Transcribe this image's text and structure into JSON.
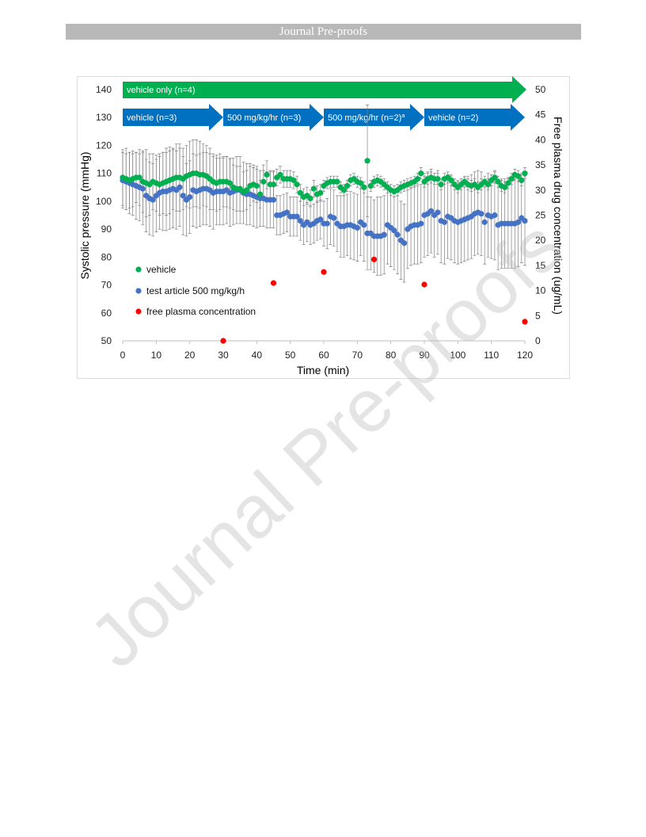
{
  "header": {
    "title": "Journal Pre-proofs"
  },
  "watermark": "Journal Pre-proofs",
  "chart_data": {
    "type": "scatter",
    "xlabel": "Time (min)",
    "ylabel": "Systolic pressure (mmHg)",
    "y2label": "Free plasma drug concentration (ug/mL)",
    "xlim": [
      0,
      120
    ],
    "ylim": [
      50,
      140
    ],
    "y2lim": [
      0,
      50
    ],
    "x_ticks": [
      0,
      10,
      20,
      30,
      40,
      50,
      60,
      70,
      80,
      90,
      100,
      110,
      120
    ],
    "y_ticks": [
      50,
      60,
      70,
      80,
      90,
      100,
      110,
      120,
      130,
      140
    ],
    "y2_ticks": [
      0,
      5,
      10,
      15,
      20,
      25,
      30,
      35,
      40,
      45,
      50
    ],
    "grid": false,
    "legend_placement": "lower-left",
    "x": [
      0,
      1,
      2,
      3,
      4,
      5,
      6,
      7,
      8,
      9,
      10,
      11,
      12,
      13,
      14,
      15,
      16,
      17,
      18,
      19,
      20,
      21,
      22,
      23,
      24,
      25,
      26,
      27,
      28,
      29,
      30,
      31,
      32,
      33,
      34,
      35,
      36,
      37,
      38,
      39,
      40,
      41,
      42,
      43,
      44,
      45,
      46,
      47,
      48,
      49,
      50,
      51,
      52,
      53,
      54,
      55,
      56,
      57,
      58,
      59,
      60,
      61,
      62,
      63,
      64,
      65,
      66,
      67,
      68,
      69,
      70,
      71,
      72,
      73,
      74,
      75,
      76,
      77,
      78,
      79,
      80,
      81,
      82,
      83,
      84,
      85,
      86,
      87,
      88,
      89,
      90,
      91,
      92,
      93,
      94,
      95,
      96,
      97,
      98,
      99,
      100,
      101,
      102,
      103,
      104,
      105,
      106,
      107,
      108,
      109,
      110,
      111,
      112,
      113,
      114,
      115,
      116,
      117,
      118,
      119,
      120
    ],
    "series": [
      {
        "name": "vehicle",
        "axis": "left",
        "color": "#00b050",
        "values": [
          108.5,
          108,
          107.5,
          108,
          108.5,
          108.5,
          107,
          106.5,
          106,
          107,
          106.5,
          106,
          106.5,
          107,
          107.5,
          108,
          108.5,
          108.5,
          108,
          109,
          109.5,
          110,
          110,
          109.5,
          109.5,
          109,
          108,
          107,
          106.5,
          107,
          107,
          107,
          106.5,
          105,
          104.5,
          104.5,
          103.5,
          104,
          105.5,
          106,
          105.5,
          102.5,
          107,
          109.5,
          106,
          106,
          108.5,
          109.5,
          108,
          108,
          108,
          107.5,
          106,
          103,
          101.5,
          102,
          101,
          104.5,
          102.5,
          103,
          105.5,
          106.5,
          107,
          107,
          107,
          105,
          104,
          105.5,
          107.5,
          108,
          107,
          106.5,
          105,
          114.5,
          105.5,
          107,
          107.5,
          107,
          106,
          105,
          104,
          103.5,
          104,
          105,
          105.5,
          106,
          106.5,
          107,
          108,
          110,
          107,
          108,
          108.5,
          108,
          108,
          106,
          108,
          108.5,
          107.5,
          106,
          105,
          106,
          107,
          106,
          105.5,
          106,
          105,
          106,
          107,
          106,
          107.5,
          108.5,
          107,
          105.5,
          105,
          106.5,
          108,
          109.5,
          109,
          107.5,
          110
        ],
        "error": [
          10,
          11,
          10,
          10,
          9,
          10,
          11,
          12,
          11,
          10,
          10,
          11,
          11,
          12,
          12,
          11,
          12,
          12,
          11,
          11,
          12,
          12,
          12,
          12,
          11,
          11,
          11,
          10,
          10,
          10,
          9,
          9,
          9,
          8,
          8,
          8,
          7,
          7,
          7,
          6,
          6,
          5,
          6,
          5,
          5,
          5,
          3,
          3,
          3,
          3,
          3,
          3,
          3,
          3,
          3,
          3,
          3,
          3,
          3,
          3,
          2,
          2,
          2,
          2,
          2,
          2,
          2,
          2,
          2,
          2,
          2,
          2,
          2,
          20,
          2,
          2,
          2,
          2,
          2,
          2,
          2,
          2,
          2,
          2,
          2,
          2,
          2,
          2,
          2,
          2,
          2,
          2,
          2,
          2,
          2,
          2,
          2,
          2,
          2,
          2,
          2,
          2,
          2,
          2,
          2,
          2,
          2,
          2,
          2,
          2,
          2,
          2,
          2,
          2,
          2,
          2,
          2,
          2,
          2,
          2,
          2
        ]
      },
      {
        "name": "test article 500 mg/kg/h",
        "axis": "left",
        "color": "#4472c4",
        "values": [
          107.5,
          107,
          106.5,
          106,
          105.5,
          105,
          104.5,
          102,
          101,
          100.5,
          102,
          103,
          103.5,
          103.5,
          104,
          104.5,
          104,
          105,
          102,
          100.5,
          101.5,
          104,
          103.5,
          104,
          104.5,
          104.5,
          104,
          103,
          103.5,
          103.5,
          103.5,
          104,
          103,
          103.5,
          104,
          104,
          103,
          102.5,
          102.5,
          102,
          101.5,
          101,
          101,
          100.5,
          100.5,
          100.5,
          95,
          95,
          95.5,
          96,
          94.5,
          94.5,
          94.5,
          93,
          91.5,
          92.5,
          91.5,
          92,
          93,
          93.5,
          92,
          92,
          94.5,
          94,
          92,
          91,
          91,
          91.5,
          91.5,
          91,
          90.5,
          92.5,
          91.5,
          88.5,
          88.5,
          87.5,
          87.5,
          87.5,
          88,
          91.5,
          90.5,
          89.5,
          88,
          86,
          85,
          90,
          91,
          91.5,
          91.5,
          92,
          95,
          95.5,
          96.5,
          95,
          96,
          93,
          92.5,
          94.5,
          94,
          93,
          92.5,
          93,
          93.5,
          94,
          94.5,
          95.5,
          96,
          95.5,
          92.5,
          95,
          94.5,
          95,
          91.5,
          92,
          92,
          92,
          92,
          92,
          92.5,
          94,
          93
        ],
        "error": [
          10,
          10,
          11,
          11,
          12,
          12,
          13,
          13,
          13,
          13,
          13,
          13,
          14,
          14,
          14,
          14,
          14,
          14,
          14,
          13,
          13,
          13,
          13,
          13,
          13,
          13,
          13,
          13,
          12,
          12,
          12,
          12,
          12,
          12,
          12,
          12,
          11,
          11,
          11,
          11,
          11,
          10,
          10,
          10,
          10,
          10,
          7,
          7,
          7,
          7,
          7,
          7,
          7,
          7,
          7,
          7,
          7,
          7,
          7,
          7,
          8,
          9,
          10,
          10,
          10,
          11,
          11,
          11,
          12,
          12,
          12,
          12,
          13,
          13,
          13,
          13,
          14,
          14,
          14,
          14,
          14,
          14,
          14,
          14,
          14,
          14,
          14,
          14,
          14,
          14,
          15,
          15,
          15,
          15,
          15,
          15,
          15,
          15,
          15,
          15,
          15,
          15,
          15,
          15,
          15,
          15,
          15,
          15,
          15,
          15,
          15,
          16,
          16,
          16,
          16,
          16,
          16,
          16,
          16,
          16,
          16
        ]
      },
      {
        "name": "free plasma concentration",
        "axis": "right",
        "color": "#ff0000",
        "x": [
          30,
          45,
          60,
          75,
          90,
          120
        ],
        "values": [
          0,
          11.5,
          13.7,
          16.2,
          11.2,
          3.8
        ]
      }
    ],
    "phase_arrows": {
      "top": [
        {
          "label": "vehicle only (n=4)",
          "from": 0,
          "to": 120,
          "color": "#00b050"
        }
      ],
      "bottom": [
        {
          "label": "vehicle (n=3)",
          "from": 0,
          "to": 30,
          "color": "#0070c0"
        },
        {
          "label": "500 mg/kg/hr (n=3)",
          "from": 30,
          "to": 60,
          "color": "#0070c0"
        },
        {
          "label": "500 mg/kg/hr (n=2)",
          "sup": "a",
          "from": 60,
          "to": 90,
          "color": "#0070c0"
        },
        {
          "label": "vehicle (n=2)",
          "from": 90,
          "to": 120,
          "color": "#0070c0"
        }
      ]
    },
    "axis_color": "#bfbfbf",
    "error_bar_color": "#7f7f7f"
  }
}
